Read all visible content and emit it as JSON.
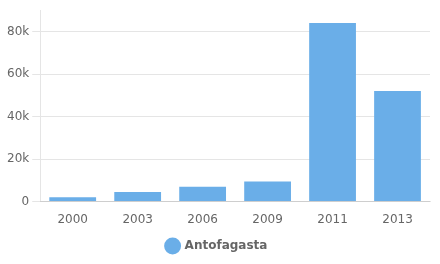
{
  "chart_data": {
    "type": "bar",
    "categories": [
      "2000",
      "2003",
      "2006",
      "2009",
      "2011",
      "2013"
    ],
    "series": [
      {
        "name": "Antofagasta",
        "color": "#6aaee8",
        "values": [
          2000,
          4500,
          7000,
          9500,
          84000,
          52000
        ]
      }
    ],
    "ylim": [
      0,
      90000
    ],
    "yticks": [
      0,
      {
        "value": 20000,
        "label": "20k"
      },
      {
        "value": 40000,
        "label": "40k"
      },
      {
        "value": 60000,
        "label": "60k"
      },
      {
        "value": 80000,
        "label": "80k"
      }
    ],
    "grid": true,
    "legend": "bottom"
  }
}
